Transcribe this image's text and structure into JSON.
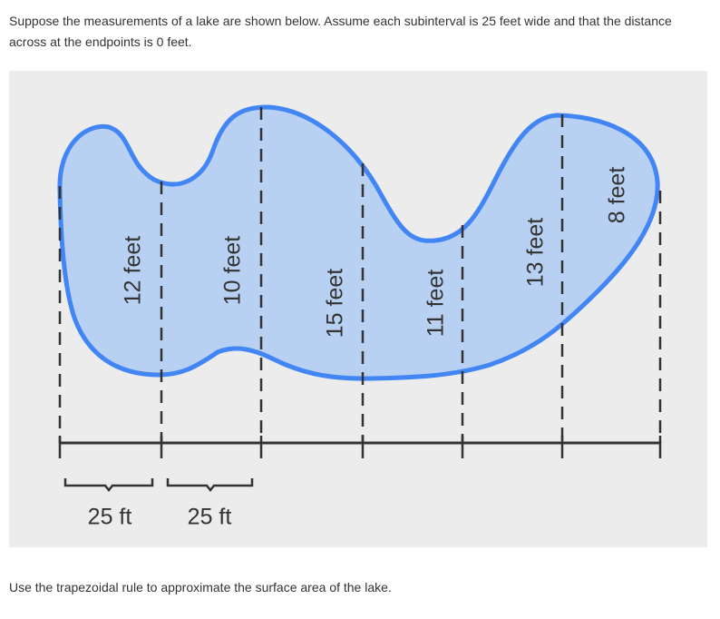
{
  "problem": {
    "intro_lines": [
      "Suppose the measurements of a lake are shown below. Assume each subinterval is 25 feet wide and that the distance",
      "across at the endpoints is 0 feet."
    ],
    "question": "Use the trapezoidal rule to approximate the surface area of the lake."
  },
  "diagram": {
    "width_labels": [
      "12 feet",
      "10 feet",
      "15 feet",
      "11 feet",
      "13 feet",
      "8 feet"
    ],
    "interval_labels": [
      "25 ft",
      "25 ft"
    ]
  }
}
